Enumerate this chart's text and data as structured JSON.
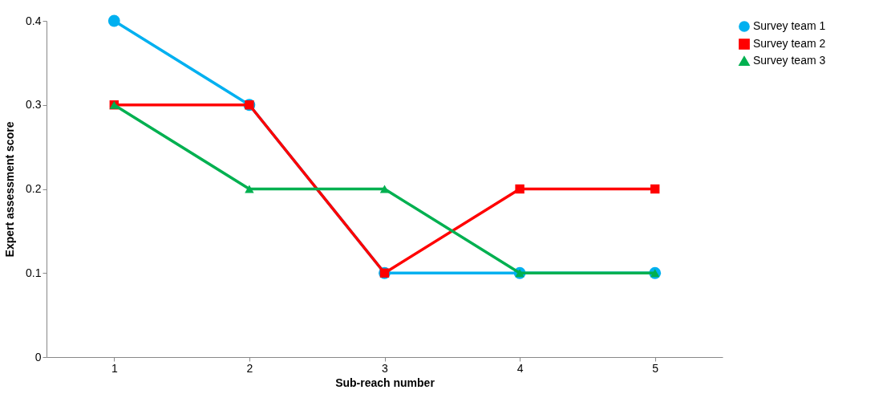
{
  "chart_data": {
    "type": "line",
    "xlabel": "Sub-reach number",
    "ylabel": "Expert assessment score",
    "categories": [
      "1",
      "2",
      "3",
      "4",
      "5"
    ],
    "ylim": [
      0,
      0.4
    ],
    "yticks": [
      0,
      0.1,
      0.2,
      0.3,
      0.4
    ],
    "grid": false,
    "legend": "right",
    "line_style": "solid",
    "series": [
      {
        "name": "Survey team 1",
        "color": "#00b0f0",
        "marker": "circle",
        "values": [
          0.4,
          0.3,
          0.1,
          0.1,
          0.1
        ]
      },
      {
        "name": "Survey team 2",
        "color": "#ff0000",
        "marker": "square",
        "values": [
          0.3,
          0.3,
          0.1,
          0.2,
          0.2
        ]
      },
      {
        "name": "Survey team 3",
        "color": "#00b050",
        "marker": "triangle",
        "values": [
          0.3,
          0.2,
          0.2,
          0.1,
          0.1
        ]
      }
    ]
  }
}
